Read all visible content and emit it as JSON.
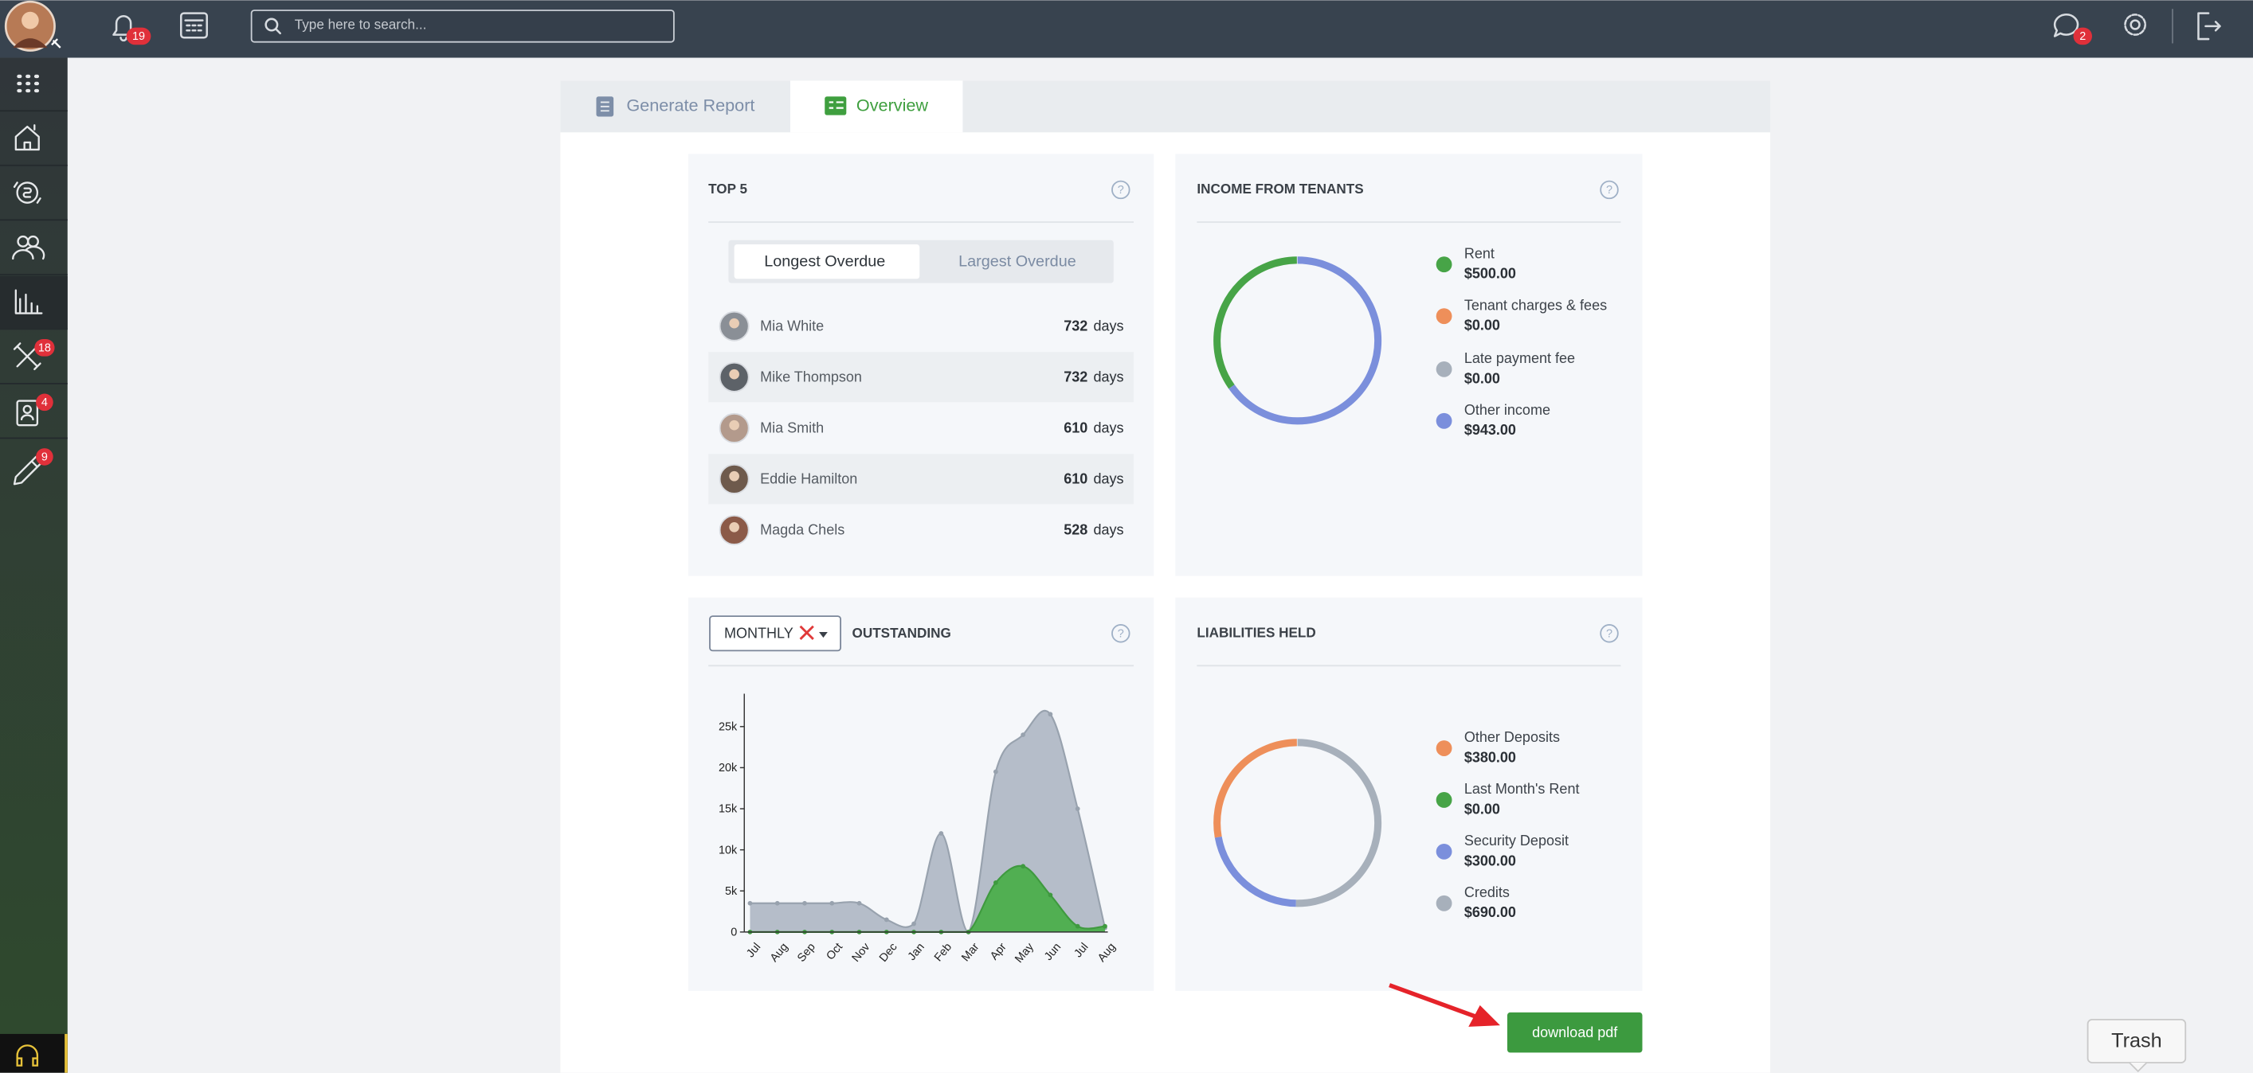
{
  "topbar": {
    "notifications_badge": "19",
    "search_placeholder": "Type here to search...",
    "messages_badge": "2"
  },
  "sidebar": {
    "badges": [
      "18",
      "4",
      "9"
    ]
  },
  "tabs": [
    "Generate Report",
    "Overview"
  ],
  "top5": {
    "title": "TOP 5",
    "toggle": [
      "Longest Overdue",
      "Largest Overdue"
    ],
    "unit": "days",
    "rows": [
      {
        "name": "Mia White",
        "days": 732
      },
      {
        "name": "Mike Thompson",
        "days": 732
      },
      {
        "name": "Mia Smith",
        "days": 610
      },
      {
        "name": "Eddie Hamilton",
        "days": 610
      },
      {
        "name": "Magda Chels",
        "days": 528
      }
    ]
  },
  "income": {
    "title": "INCOME FROM TENANTS",
    "items": [
      {
        "name": "Rent",
        "value": 500,
        "value_label": "$500.00",
        "color": "#47a447"
      },
      {
        "name": "Tenant charges & fees",
        "value": 0,
        "value_label": "$0.00",
        "color": "#ee8f5a"
      },
      {
        "name": "Late payment fee",
        "value": 0,
        "value_label": "$0.00",
        "color": "#a7b0bb"
      },
      {
        "name": "Other income",
        "value": 943,
        "value_label": "$943.00",
        "color": "#7b8fdc"
      }
    ]
  },
  "outstanding": {
    "period": "MONTHLY",
    "title": "OUTSTANDING",
    "chart": {
      "type": "area",
      "categories": [
        "Jul",
        "Aug",
        "Sep",
        "Oct",
        "Nov",
        "Dec",
        "Jan",
        "Feb",
        "Mar",
        "Apr",
        "May",
        "Jun",
        "Jul",
        "Aug"
      ],
      "series": [
        {
          "color": "#a9b3bf",
          "values": [
            3500,
            3500,
            3500,
            3500,
            3500,
            1500,
            1000,
            12000,
            0,
            19500,
            24000,
            26500,
            15000,
            500
          ]
        },
        {
          "color": "#4cae4c",
          "values": [
            0,
            0,
            0,
            0,
            0,
            0,
            0,
            0,
            0,
            6000,
            8000,
            4500,
            700,
            700
          ]
        }
      ],
      "ylim": [
        0,
        29000
      ],
      "yticks": [
        0,
        {
          "value": 5000,
          "label": "5k"
        },
        {
          "value": 10000,
          "label": "10k"
        },
        {
          "value": 15000,
          "label": "15k"
        },
        {
          "value": 20000,
          "label": "20k"
        },
        {
          "value": 25000,
          "label": "25k"
        }
      ]
    }
  },
  "liabilities": {
    "title": "LIABILITIES HELD",
    "items": [
      {
        "name": "Other Deposits",
        "value": 380,
        "value_label": "$380.00",
        "color": "#ee8f5a"
      },
      {
        "name": "Last Month's Rent",
        "value": 0,
        "value_label": "$0.00",
        "color": "#47a447"
      },
      {
        "name": "Security Deposit",
        "value": 300,
        "value_label": "$300.00",
        "color": "#7b8fdc"
      },
      {
        "name": "Credits",
        "value": 690,
        "value_label": "$690.00",
        "color": "#a7b0bb"
      }
    ]
  },
  "download": "download pdf",
  "trash": "Trash"
}
